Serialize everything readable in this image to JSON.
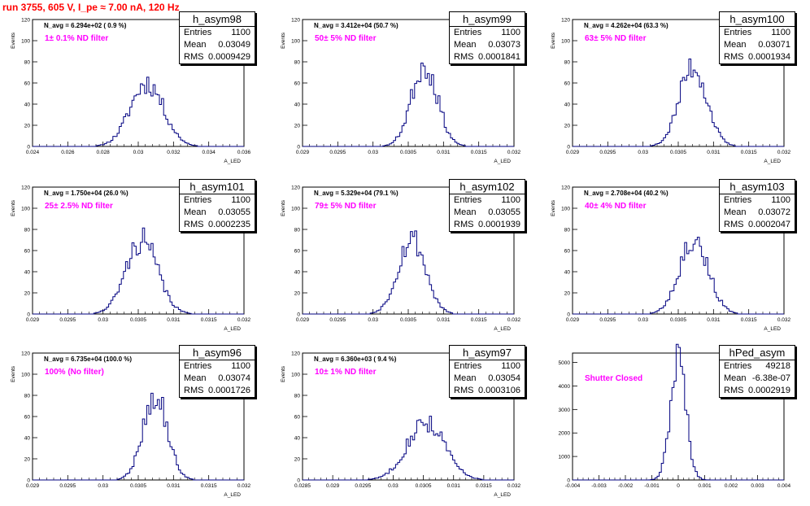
{
  "title": "run 3755,   605 V, I_pe ≈ 7.00 nA, 120 Hz",
  "colors": {
    "title": "#ff0000",
    "hist": "#000080",
    "annotation": "#ff00ff",
    "axis": "#000000"
  },
  "stat_labels": {
    "entries": "Entries",
    "mean": "Mean",
    "rms": "RMS"
  },
  "chart_data": [
    {
      "type": "histogram",
      "name": "h_asym98",
      "stats": {
        "entries": "1100",
        "mean": "0.03049",
        "rms": "0.0009429"
      },
      "n_avg_label": "N_avg = 6.294e+02 ( 0.9 %)",
      "filter_label": "1± 0.1% ND filter",
      "xlabel": "A_LED",
      "ylabel": "Events",
      "xlim": [
        0.024,
        0.036
      ],
      "ylim": [
        0,
        120
      ],
      "xticks": [
        "0.024",
        "0.026",
        "0.028",
        "0.03",
        "0.032",
        "0.034",
        "0.036"
      ],
      "yticks": [
        "0",
        "20",
        "40",
        "60",
        "80",
        "100",
        "120"
      ],
      "mean": 0.03049,
      "rms": 0.0009429,
      "peak": 60,
      "seed": 11
    },
    {
      "type": "histogram",
      "name": "h_asym99",
      "stats": {
        "entries": "1100",
        "mean": "0.03073",
        "rms": "0.0001841"
      },
      "n_avg_label": "N_avg = 3.412e+04 (50.7 %)",
      "filter_label": "50± 5% ND filter",
      "xlabel": "A_LED",
      "ylabel": "Events",
      "xlim": [
        0.029,
        0.032
      ],
      "ylim": [
        0,
        120
      ],
      "xticks": [
        "0.029",
        "0.0295",
        "0.03",
        "0.0305",
        "0.031",
        "0.0315",
        "0.032"
      ],
      "yticks": [
        "0",
        "20",
        "40",
        "60",
        "80",
        "100",
        "120"
      ],
      "mean": 0.03073,
      "rms": 0.0001841,
      "peak": 77,
      "seed": 23
    },
    {
      "type": "histogram",
      "name": "h_asym100",
      "stats": {
        "entries": "1100",
        "mean": "0.03071",
        "rms": "0.0001934"
      },
      "n_avg_label": "N_avg = 4.262e+04 (63.3 %)",
      "filter_label": "63± 5% ND filter",
      "xlabel": "A_LED",
      "ylabel": "Events",
      "xlim": [
        0.029,
        0.032
      ],
      "ylim": [
        0,
        120
      ],
      "xticks": [
        "0.029",
        "0.0295",
        "0.03",
        "0.0305",
        "0.031",
        "0.0315",
        "0.032"
      ],
      "yticks": [
        "0",
        "20",
        "40",
        "60",
        "80",
        "100",
        "120"
      ],
      "mean": 0.03071,
      "rms": 0.0001934,
      "peak": 76,
      "seed": 37
    },
    {
      "type": "histogram",
      "name": "h_asym101",
      "stats": {
        "entries": "1100",
        "mean": "0.03055",
        "rms": "0.0002235"
      },
      "n_avg_label": "N_avg = 1.750e+04 (26.0 %)",
      "filter_label": "25± 2.5% ND filter",
      "xlabel": "A_LED",
      "ylabel": "Events",
      "xlim": [
        0.029,
        0.032
      ],
      "ylim": [
        0,
        120
      ],
      "xticks": [
        "0.029",
        "0.0295",
        "0.03",
        "0.0305",
        "0.031",
        "0.0315",
        "0.032"
      ],
      "yticks": [
        "0",
        "20",
        "40",
        "60",
        "80",
        "100",
        "120"
      ],
      "mean": 0.03055,
      "rms": 0.0002235,
      "peak": 70,
      "seed": 41
    },
    {
      "type": "histogram",
      "name": "h_asym102",
      "stats": {
        "entries": "1100",
        "mean": "0.03055",
        "rms": "0.0001939"
      },
      "n_avg_label": "N_avg = 5.329e+04 (79.1 %)",
      "filter_label": "79± 5% ND filter",
      "xlabel": "A_LED",
      "ylabel": "Events",
      "xlim": [
        0.029,
        0.032
      ],
      "ylim": [
        0,
        120
      ],
      "xticks": [
        "0.029",
        "0.0295",
        "0.03",
        "0.0305",
        "0.031",
        "0.0315",
        "0.032"
      ],
      "yticks": [
        "0",
        "20",
        "40",
        "60",
        "80",
        "100",
        "120"
      ],
      "mean": 0.03055,
      "rms": 0.0001939,
      "peak": 72,
      "seed": 53
    },
    {
      "type": "histogram",
      "name": "h_asym103",
      "stats": {
        "entries": "1100",
        "mean": "0.03072",
        "rms": "0.0002047"
      },
      "n_avg_label": "N_avg = 2.708e+04 (40.2 %)",
      "filter_label": "40± 4% ND filter",
      "xlabel": "A_LED",
      "ylabel": "Events",
      "xlim": [
        0.029,
        0.032
      ],
      "ylim": [
        0,
        120
      ],
      "xticks": [
        "0.029",
        "0.0295",
        "0.03",
        "0.0305",
        "0.031",
        "0.0315",
        "0.032"
      ],
      "yticks": [
        "0",
        "20",
        "40",
        "60",
        "80",
        "100",
        "120"
      ],
      "mean": 0.03072,
      "rms": 0.0002047,
      "peak": 71,
      "seed": 67
    },
    {
      "type": "histogram",
      "name": "h_asym96",
      "stats": {
        "entries": "1100",
        "mean": "0.03074",
        "rms": "0.0001726"
      },
      "n_avg_label": "N_avg = 6.735e+04 (100.0 %)",
      "filter_label": "100% (No filter)",
      "xlabel": "A_LED",
      "ylabel": "Events",
      "xlim": [
        0.029,
        0.032
      ],
      "ylim": [
        0,
        120
      ],
      "xticks": [
        "0.029",
        "0.0295",
        "0.03",
        "0.0305",
        "0.031",
        "0.0315",
        "0.032"
      ],
      "yticks": [
        "0",
        "20",
        "40",
        "60",
        "80",
        "100",
        "120"
      ],
      "mean": 0.03074,
      "rms": 0.0001726,
      "peak": 80,
      "seed": 79
    },
    {
      "type": "histogram",
      "name": "h_asym97",
      "stats": {
        "entries": "1100",
        "mean": "0.03054",
        "rms": "0.0003106"
      },
      "n_avg_label": "N_avg = 6.360e+03 ( 9.4 %)",
      "filter_label": "10± 1% ND filter",
      "xlabel": "A_LED",
      "ylabel": "Events",
      "xlim": [
        0.0285,
        0.032
      ],
      "ylim": [
        0,
        120
      ],
      "xticks": [
        "0.0285",
        "0.029",
        "0.0295",
        "0.03",
        "0.0305",
        "0.031",
        "0.0315",
        "0.032"
      ],
      "yticks": [
        "0",
        "20",
        "40",
        "60",
        "80",
        "100",
        "120"
      ],
      "mean": 0.03054,
      "rms": 0.0003106,
      "peak": 55,
      "seed": 83
    },
    {
      "type": "histogram",
      "name": "hPed_asym",
      "stats": {
        "entries": "49218",
        "mean": "-6.38e-07",
        "rms": "0.0002919"
      },
      "n_avg_label": "",
      "filter_label": "Shutter Closed",
      "xlabel": "",
      "ylabel": "",
      "xlim": [
        -0.004,
        0.004
      ],
      "ylim": [
        0,
        5400
      ],
      "xticks": [
        "-0.004",
        "-0.003",
        "-0.002",
        "-0.001",
        "0",
        "0.001",
        "0.002",
        "0.003",
        "0.004"
      ],
      "yticks": [
        "0",
        "1000",
        "2000",
        "3000",
        "4000",
        "5000"
      ],
      "mean": -6.38e-07,
      "rms": 0.0002919,
      "peak": 5150,
      "seed": 97
    }
  ]
}
